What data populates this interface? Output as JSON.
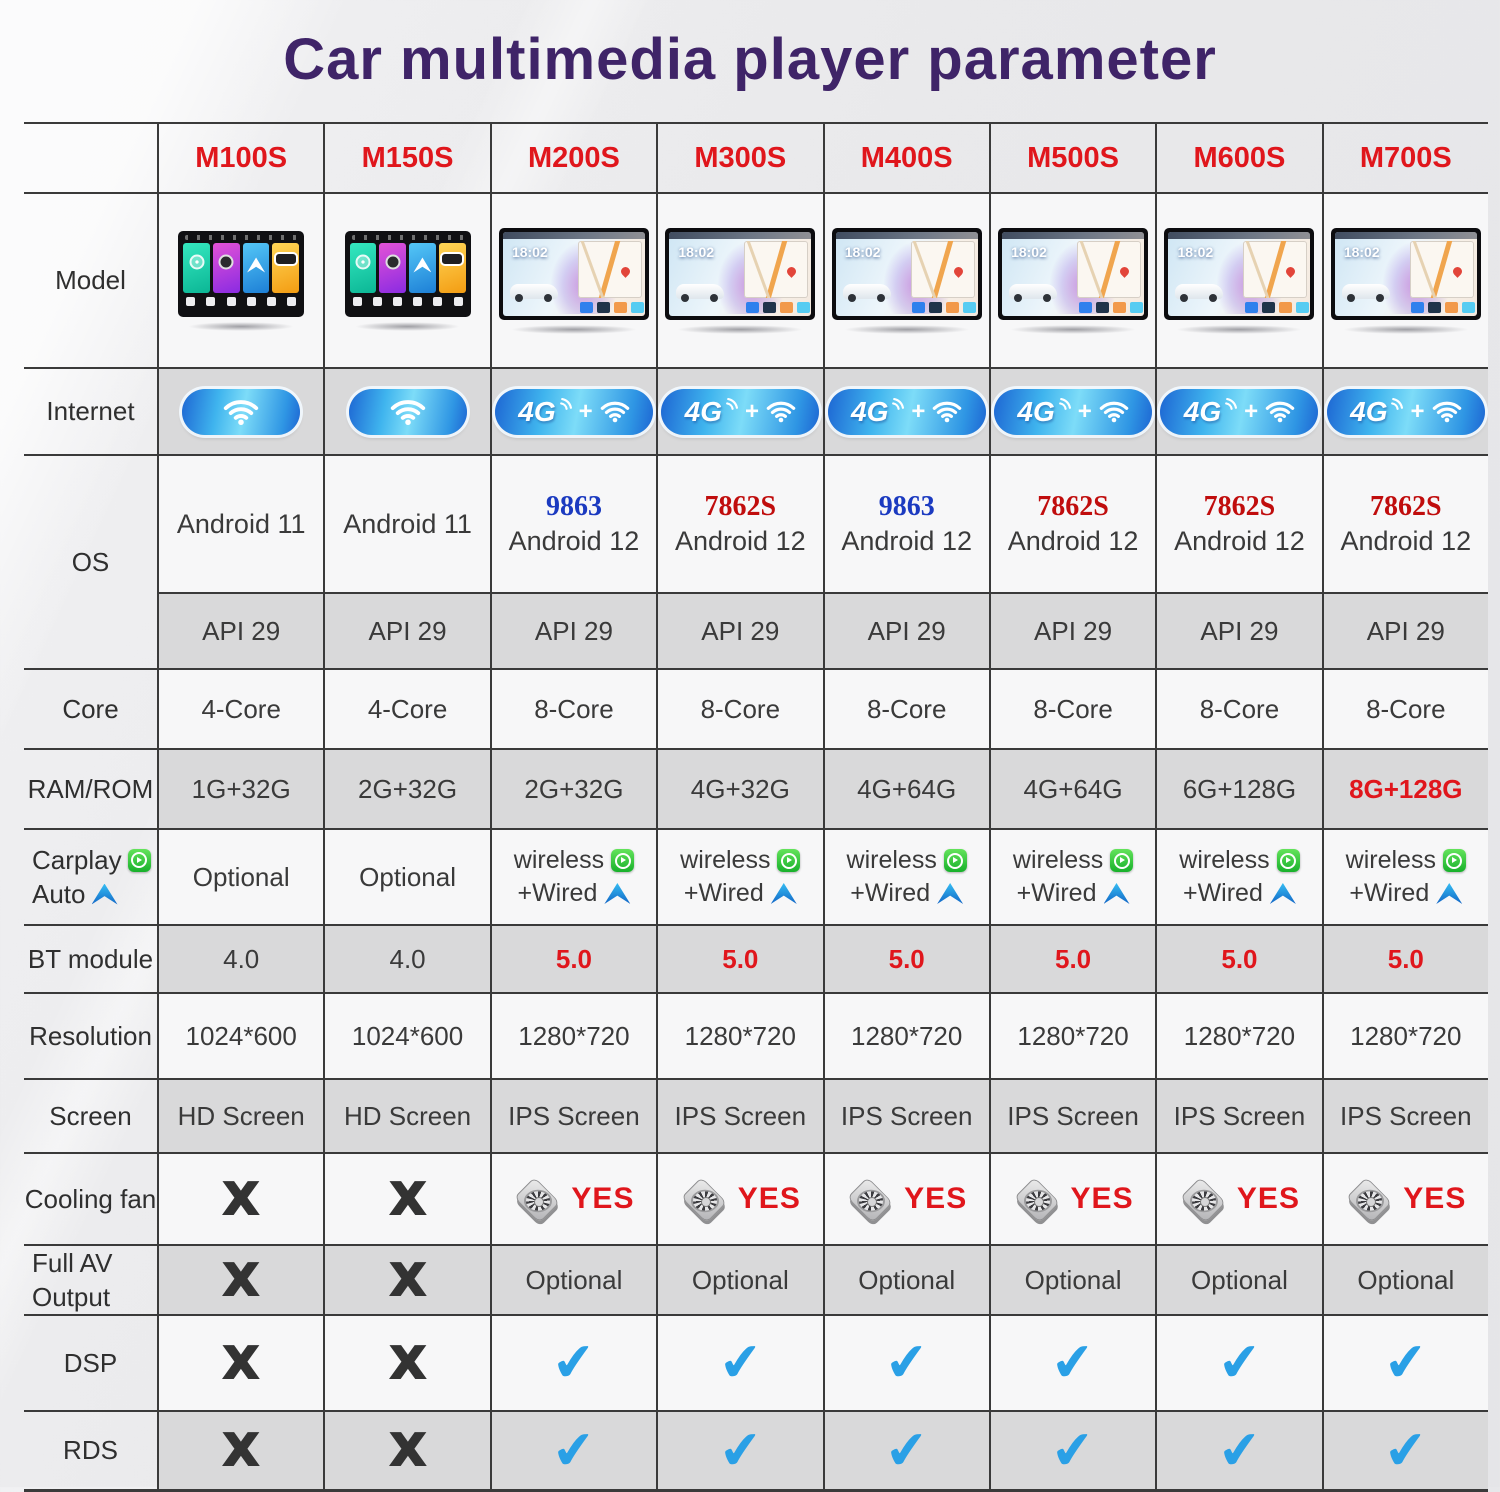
{
  "title": "Car multimedia player parameter",
  "columns": [
    "M100S",
    "M150S",
    "M200S",
    "M300S",
    "M400S",
    "M500S",
    "M600S",
    "M700S"
  ],
  "device_clock": "18:02",
  "net_labels": {
    "g4": "4G",
    "plus": "+"
  },
  "marks": {
    "x": "X",
    "check": "✔"
  },
  "colors": {
    "title_purple": "#3f2468",
    "accent_red": "#e0161c",
    "chip_blue": "#1b3ac0",
    "chip_red": "#c00d0d",
    "check_blue": "#2aa0e6",
    "row_gray": "#d9d9da",
    "grid_line": "#3a3a3a"
  },
  "rows": [
    {
      "id": "model",
      "label": "Model",
      "type": "device",
      "devices": [
        "home",
        "home",
        "map",
        "map",
        "map",
        "map",
        "map",
        "map"
      ]
    },
    {
      "id": "internet",
      "label": "Internet",
      "type": "net",
      "shaded": true,
      "values": [
        "wifi",
        "wifi",
        "4g",
        "4g",
        "4g",
        "4g",
        "4g",
        "4g"
      ]
    },
    {
      "id": "os",
      "label": "OS",
      "type": "os",
      "chips": [
        "",
        "",
        "9863",
        "7862S",
        "9863",
        "7862S",
        "7862S",
        "7862S"
      ],
      "chip_colors": [
        "",
        "",
        "blue",
        "red",
        "blue",
        "red",
        "red",
        "red"
      ],
      "os": [
        "Android 11",
        "Android 11",
        "Android 12",
        "Android 12",
        "Android 12",
        "Android 12",
        "Android 12",
        "Android 12"
      ]
    },
    {
      "id": "api",
      "label": "",
      "type": "text",
      "shaded": true,
      "values": [
        "API 29",
        "API 29",
        "API 29",
        "API 29",
        "API 29",
        "API 29",
        "API 29",
        "API 29"
      ]
    },
    {
      "id": "core",
      "label": "Core",
      "type": "text",
      "values": [
        "4-Core",
        "4-Core",
        "8-Core",
        "8-Core",
        "8-Core",
        "8-Core",
        "8-Core",
        "8-Core"
      ]
    },
    {
      "id": "ram",
      "label": "RAM/ROM",
      "type": "text",
      "shaded": true,
      "values": [
        "1G+32G",
        "2G+32G",
        "2G+32G",
        "4G+32G",
        "4G+64G",
        "4G+64G",
        "6G+128G",
        "8G+128G"
      ],
      "value_colors": [
        "",
        "",
        "",
        "",
        "",
        "",
        "",
        "red"
      ]
    },
    {
      "id": "carplay",
      "label_lines": [
        "Carplay",
        "Auto"
      ],
      "type": "carplay",
      "values": [
        "Optional",
        "Optional",
        "wireless",
        "wireless",
        "wireless",
        "wireless",
        "wireless",
        "wireless"
      ],
      "wireless_label": "wireless",
      "wired_label": "+Wired"
    },
    {
      "id": "bt",
      "label": "BT module",
      "type": "text",
      "shaded": true,
      "values": [
        "4.0",
        "4.0",
        "5.0",
        "5.0",
        "5.0",
        "5.0",
        "5.0",
        "5.0"
      ],
      "value_colors": [
        "",
        "",
        "red",
        "red",
        "red",
        "red",
        "red",
        "red"
      ]
    },
    {
      "id": "resolution",
      "label": "Resolution",
      "type": "text",
      "values": [
        "1024*600",
        "1024*600",
        "1280*720",
        "1280*720",
        "1280*720",
        "1280*720",
        "1280*720",
        "1280*720"
      ]
    },
    {
      "id": "screen",
      "label": "Screen",
      "type": "text",
      "shaded": true,
      "values": [
        "HD Screen",
        "HD Screen",
        "IPS Screen",
        "IPS Screen",
        "IPS Screen",
        "IPS Screen",
        "IPS Screen",
        "IPS Screen"
      ]
    },
    {
      "id": "cooling",
      "label": "Cooling fan",
      "type": "fan",
      "yes_label": "YES",
      "values": [
        "no",
        "no",
        "yes",
        "yes",
        "yes",
        "yes",
        "yes",
        "yes"
      ]
    },
    {
      "id": "av",
      "label_lines": [
        "Full AV",
        "Output"
      ],
      "type": "xtext",
      "shaded": true,
      "values": [
        "no",
        "no",
        "Optional",
        "Optional",
        "Optional",
        "Optional",
        "Optional",
        "Optional"
      ]
    },
    {
      "id": "dsp",
      "label": "DSP",
      "type": "bool",
      "values": [
        "no",
        "no",
        "yes",
        "yes",
        "yes",
        "yes",
        "yes",
        "yes"
      ]
    },
    {
      "id": "rds",
      "label": "RDS",
      "type": "bool",
      "shaded": true,
      "values": [
        "no",
        "no",
        "yes",
        "yes",
        "yes",
        "yes",
        "yes",
        "yes"
      ]
    }
  ]
}
